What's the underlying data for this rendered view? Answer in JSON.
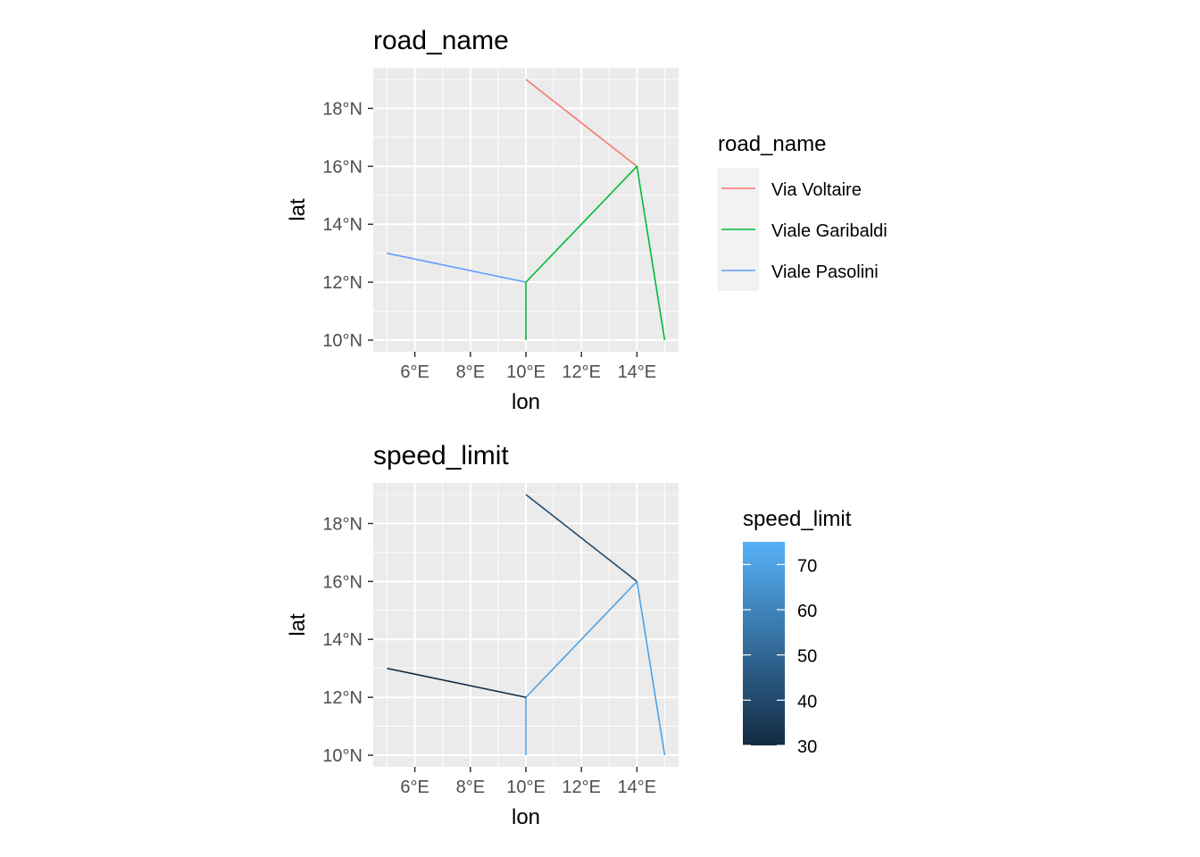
{
  "chart_data": [
    {
      "type": "line",
      "title": "road_name",
      "xlabel": "lon",
      "ylabel": "lat",
      "xlim": [
        4.5,
        15.5
      ],
      "ylim": [
        9.6,
        19.4
      ],
      "x_ticks": [
        {
          "value": 6,
          "label": "6°E"
        },
        {
          "value": 8,
          "label": "8°E"
        },
        {
          "value": 10,
          "label": "10°E"
        },
        {
          "value": 12,
          "label": "12°E"
        },
        {
          "value": 14,
          "label": "14°E"
        }
      ],
      "y_ticks": [
        {
          "value": 10,
          "label": "10°N"
        },
        {
          "value": 12,
          "label": "12°N"
        },
        {
          "value": 14,
          "label": "14°N"
        },
        {
          "value": 16,
          "label": "16°N"
        },
        {
          "value": 18,
          "label": "18°N"
        }
      ],
      "grid": true,
      "legend": {
        "title": "road_name",
        "position": "right",
        "type": "discrete",
        "entries": [
          {
            "label": "Via Voltaire",
            "color": "#F8766D"
          },
          {
            "label": "Viale Garibaldi",
            "color": "#00BA38"
          },
          {
            "label": "Viale Pasolini",
            "color": "#619CFF"
          }
        ]
      },
      "segments": [
        {
          "road_name": "Via Voltaire",
          "color": "#F8766D",
          "points": [
            [
              10,
              19
            ],
            [
              14,
              16
            ]
          ]
        },
        {
          "road_name": "Viale Garibaldi",
          "color": "#00BA38",
          "points": [
            [
              10,
              10
            ],
            [
              10,
              12
            ],
            [
              14,
              16
            ],
            [
              15,
              10
            ]
          ]
        },
        {
          "road_name": "Viale Pasolini",
          "color": "#619CFF",
          "points": [
            [
              5,
              13
            ],
            [
              10,
              12
            ]
          ]
        }
      ]
    },
    {
      "type": "line",
      "title": "speed_limit",
      "xlabel": "lon",
      "ylabel": "lat",
      "xlim": [
        4.5,
        15.5
      ],
      "ylim": [
        9.6,
        19.4
      ],
      "x_ticks": [
        {
          "value": 6,
          "label": "6°E"
        },
        {
          "value": 8,
          "label": "8°E"
        },
        {
          "value": 10,
          "label": "10°E"
        },
        {
          "value": 12,
          "label": "12°E"
        },
        {
          "value": 14,
          "label": "14°E"
        }
      ],
      "y_ticks": [
        {
          "value": 10,
          "label": "10°N"
        },
        {
          "value": 12,
          "label": "12°N"
        },
        {
          "value": 14,
          "label": "14°N"
        },
        {
          "value": 16,
          "label": "16°N"
        },
        {
          "value": 18,
          "label": "18°N"
        }
      ],
      "grid": true,
      "legend": {
        "title": "speed_limit",
        "position": "right",
        "type": "continuous",
        "range": [
          30,
          75
        ],
        "low_color": "#132B43",
        "high_color": "#56B1F7",
        "breaks": [
          30,
          40,
          50,
          60,
          70
        ]
      },
      "segments": [
        {
          "speed_limit": 40,
          "points": [
            [
              10,
              19
            ],
            [
              14,
              16
            ]
          ]
        },
        {
          "speed_limit": 70,
          "points": [
            [
              10,
              10
            ],
            [
              10,
              12
            ],
            [
              14,
              16
            ],
            [
              15,
              10
            ]
          ]
        },
        {
          "speed_limit": 30,
          "points": [
            [
              5,
              13
            ],
            [
              10,
              12
            ]
          ]
        }
      ]
    }
  ]
}
